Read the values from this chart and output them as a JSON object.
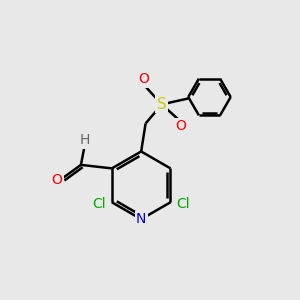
{
  "background_color": "#e8e8e8",
  "bond_color": "#000000",
  "line_width": 1.8,
  "atom_colors": {
    "N": "#0000cc",
    "O": "#ff0000",
    "Cl": "#00aa00",
    "S": "#cccc00",
    "C": "#000000",
    "H": "#666666"
  },
  "font_size": 9.5,
  "fig_size": [
    3.0,
    3.0
  ],
  "dpi": 100,
  "xlim": [
    0,
    10
  ],
  "ylim": [
    0,
    10
  ]
}
